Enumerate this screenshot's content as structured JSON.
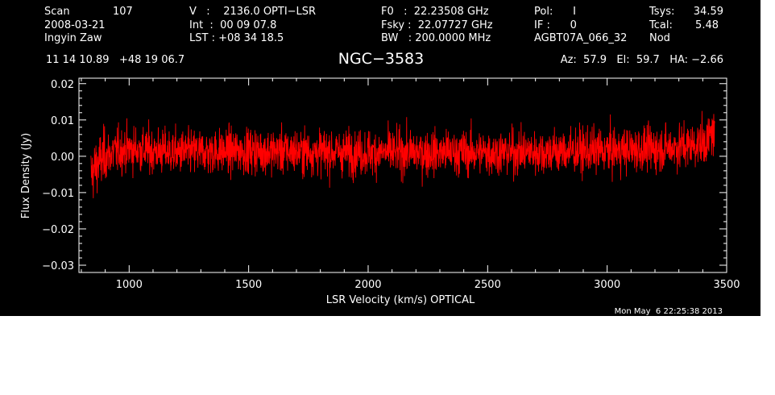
{
  "header": {
    "col1": {
      "scan_label": "Scan",
      "scan_number": "107",
      "date": "2008-03-21",
      "observer": "Ingyin Zaw"
    },
    "col2": {
      "velocity_line": "V   :    2136.0 OPTI−LSR",
      "int_line": "Int  :  00 09 07.8",
      "lst_line": "LST : +08 34 18.5"
    },
    "col3": {
      "f0_line": "F0   :  22.23508 GHz",
      "fsky_line": "Fsky :  22.07727 GHz",
      "bw_line": "BW   : 200.0000 MHz"
    },
    "col4": {
      "pol_line": "Pol:      I",
      "if_line": "IF :      0",
      "project": "AGBT07A_066_32"
    },
    "col5": {
      "tsys_label": "Tsys:",
      "tsys_value": "34.59",
      "tcal_label": "Tcal:",
      "tcal_value": "5.48",
      "mode": "Nod"
    },
    "coords": "11 14 10.89   +48 19 06.7",
    "azel": "Az:  57.9   El:  59.7   HA: −2.66"
  },
  "timestamp": "Mon May  6 22:25:38 2013",
  "colors": {
    "background": "#000000",
    "trace": "#ff0000",
    "axes": "#ffffff"
  },
  "chart_data": {
    "type": "line",
    "title": "NGC−3583",
    "xlabel": "LSR Velocity (km/s) OPTICAL",
    "ylabel": "Flux Density (Jy)",
    "xlim": [
      790,
      3500
    ],
    "ylim": [
      -0.032,
      0.0215
    ],
    "x_range_of_data": [
      840,
      3450
    ],
    "xticks": [
      1000,
      1500,
      2000,
      2500,
      3000,
      3500
    ],
    "xtick_labels": [
      "1000",
      "1500",
      "2000",
      "2500",
      "3000",
      "3500"
    ],
    "yticks": [
      0.02,
      0.01,
      0.0,
      -0.01,
      -0.02,
      -0.03
    ],
    "ytick_labels": [
      "0.02",
      "0.01",
      "0.00",
      "−0.01",
      "−0.02",
      "−0.03"
    ],
    "grid": false,
    "legend": "none",
    "series": [
      {
        "profile_x": [
          840,
          850,
          870,
          900,
          950,
          1000,
          1200,
          1500,
          2000,
          2500,
          3000,
          3200,
          3350,
          3420,
          3440,
          3450
        ],
        "profile_mean_y": [
          -0.005,
          -0.004,
          -0.002,
          0.0,
          0.0015,
          0.002,
          0.001,
          0.0015,
          0.001,
          0.001,
          0.0015,
          0.002,
          0.003,
          0.004,
          0.007,
          0.005
        ],
        "noise_amplitude_jy": 0.005
      }
    ]
  }
}
